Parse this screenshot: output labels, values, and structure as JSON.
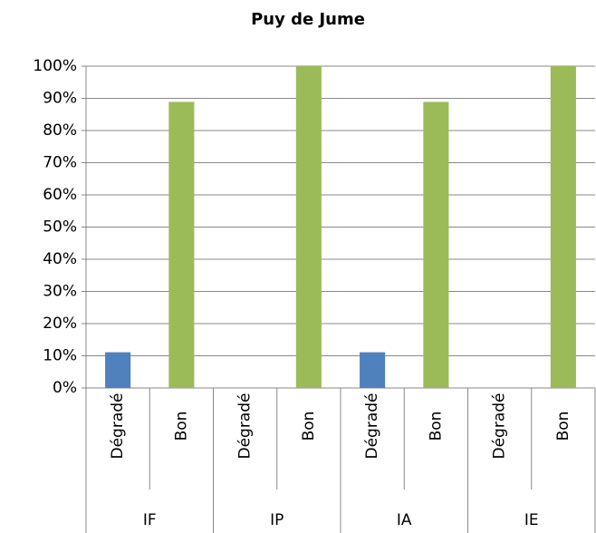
{
  "chart_data": {
    "type": "bar",
    "title": "Puy de Jume",
    "categories": [
      "Dégradé",
      "Bon",
      "Dégradé",
      "Bon",
      "Dégradé",
      "Bon",
      "Dégradé",
      "Bon"
    ],
    "groups": [
      "IF",
      "IP",
      "IA",
      "IE"
    ],
    "values": [
      11.1,
      88.9,
      0,
      100,
      11.1,
      88.9,
      0,
      100
    ],
    "colors": [
      "#4f81bd",
      "#9bbb59",
      "#4f81bd",
      "#9bbb59",
      "#4f81bd",
      "#9bbb59",
      "#4f81bd",
      "#9bbb59"
    ],
    "ylim": [
      0,
      100
    ],
    "yticks": [
      {
        "value": 0,
        "label": "0%"
      },
      {
        "value": 10,
        "label": "10%"
      },
      {
        "value": 20,
        "label": "20%"
      },
      {
        "value": 30,
        "label": "30%"
      },
      {
        "value": 40,
        "label": "40%"
      },
      {
        "value": 50,
        "label": "50%"
      },
      {
        "value": 60,
        "label": "60%"
      },
      {
        "value": 70,
        "label": "70%"
      },
      {
        "value": 80,
        "label": "80%"
      },
      {
        "value": 90,
        "label": "90%"
      },
      {
        "value": 100,
        "label": "100%"
      }
    ],
    "grid": true
  }
}
